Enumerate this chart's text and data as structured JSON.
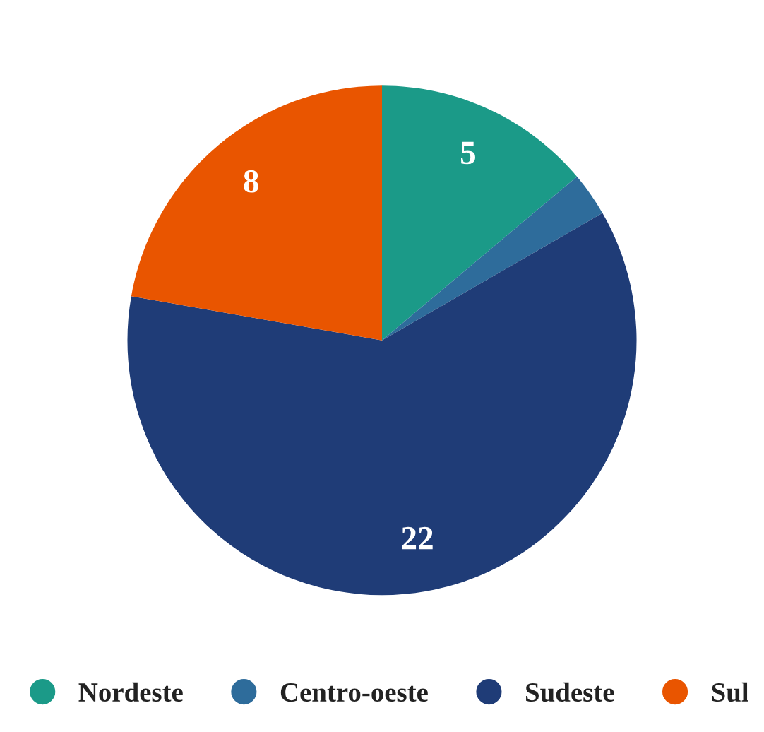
{
  "chart_data": {
    "type": "pie",
    "categories": [
      "Nordeste",
      "Centro-oeste",
      "Sudeste",
      "Sul"
    ],
    "values": [
      5,
      1,
      22,
      8
    ],
    "value_labels": [
      "5",
      null,
      "22",
      "8"
    ],
    "colors": [
      "#1b9a88",
      "#2e6c9b",
      "#1f3c77",
      "#e95500"
    ],
    "legend": "bottom"
  }
}
